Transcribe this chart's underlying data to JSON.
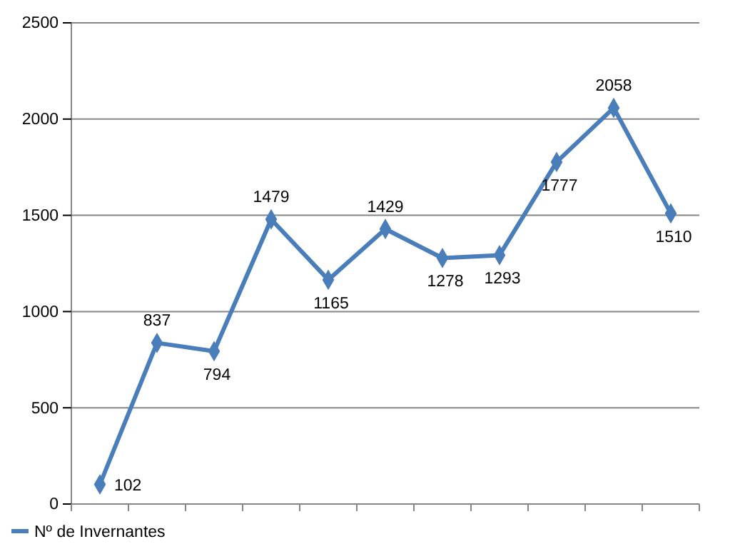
{
  "chart_data": {
    "type": "line",
    "categories": [
      null,
      null,
      null,
      null,
      null,
      null,
      null,
      null,
      null,
      null,
      null
    ],
    "series": [
      {
        "name": "Nº de Invernantes",
        "color": "#4a7ebb",
        "values": [
          102,
          837,
          794,
          1479,
          1165,
          1429,
          1278,
          1293,
          1777,
          2058,
          1510
        ]
      }
    ],
    "ylim": [
      0,
      2500
    ],
    "yticks": [
      0,
      500,
      1000,
      1500,
      2000,
      2500
    ],
    "grid": "y",
    "legend": "bottom left",
    "marker": "diamond",
    "line_style": "solid",
    "data_labels": true
  }
}
